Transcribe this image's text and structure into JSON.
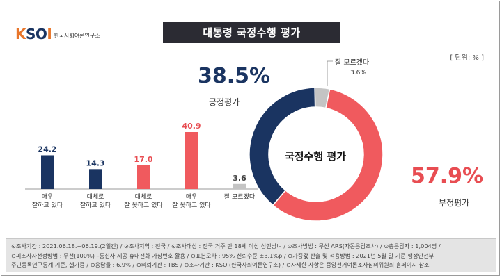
{
  "brand": {
    "logo_text": "KSOI",
    "logo_sub": "한국사회여론연구소"
  },
  "header": {
    "title": "대통령 국정수행 평가",
    "unit": "[ 단위: % ]"
  },
  "colors": {
    "positive": "#1a3461",
    "negative": "#e84d52",
    "dont_know": "#c4c4c4",
    "title_bg": "#2b2b33"
  },
  "chart_data": [
    {
      "type": "bar",
      "categories": [
        "매우\n잘하고 있다",
        "대체로\n잘하고 있다",
        "대체로\n잘 못하고 있다",
        "매우\n잘 못하고 있다",
        "잘 모르겠다"
      ],
      "values": [
        24.2,
        14.3,
        17.0,
        40.9,
        3.6
      ],
      "value_labels": [
        "24.2",
        "14.3",
        "17.0",
        "40.9",
        "3.6"
      ],
      "colors": [
        "#1a3461",
        "#1a3461",
        "#f05a5e",
        "#f05a5e",
        "#c4c4c4"
      ],
      "ylim": [
        0,
        45
      ]
    },
    {
      "type": "pie",
      "title": "국정수행 평가",
      "labels": [
        "긍정평가",
        "부정평가",
        "잘 모르겠다"
      ],
      "values": [
        38.5,
        57.9,
        3.6
      ],
      "value_labels": [
        "38.5%",
        "57.9%",
        "3.6%"
      ],
      "colors": [
        "#1a3461",
        "#f05a5e",
        "#c4c4c4"
      ],
      "donut": true
    }
  ],
  "footer": {
    "line1": "⊙조사기간 : 2021.06.18.~06.19.(2일간)  / ⊙조사지역 : 전국 / ⊙조사대상 : 전국 거주 만 18세 이상 성인남녀  / ⊙조사방법 : 무선 ARS(자동응답조사)  / ⊙총응답자 : 1,004명 /",
    "line2": "⊙피조사자선정방법 : 무선(100%) –통신사 제공 휴대전화 가상번호 활용  / ⊙표본오차 : 95% 신뢰수준 ±3.1%p / ⊙가중값 산출 및 적용방법 : 2021년 5월 말 기준 행정안전부",
    "line3": "주민등록인구통계 기준, 셀가중  / ⊙응답률 : 6.9% / ⊙의뢰기관 : TBS / ⊙조사기관 : KSOI(한국사회여론연구소) / ⊙자세한 사항은 중앙선거여론조사심의위원회 홈페이지 참조"
  }
}
